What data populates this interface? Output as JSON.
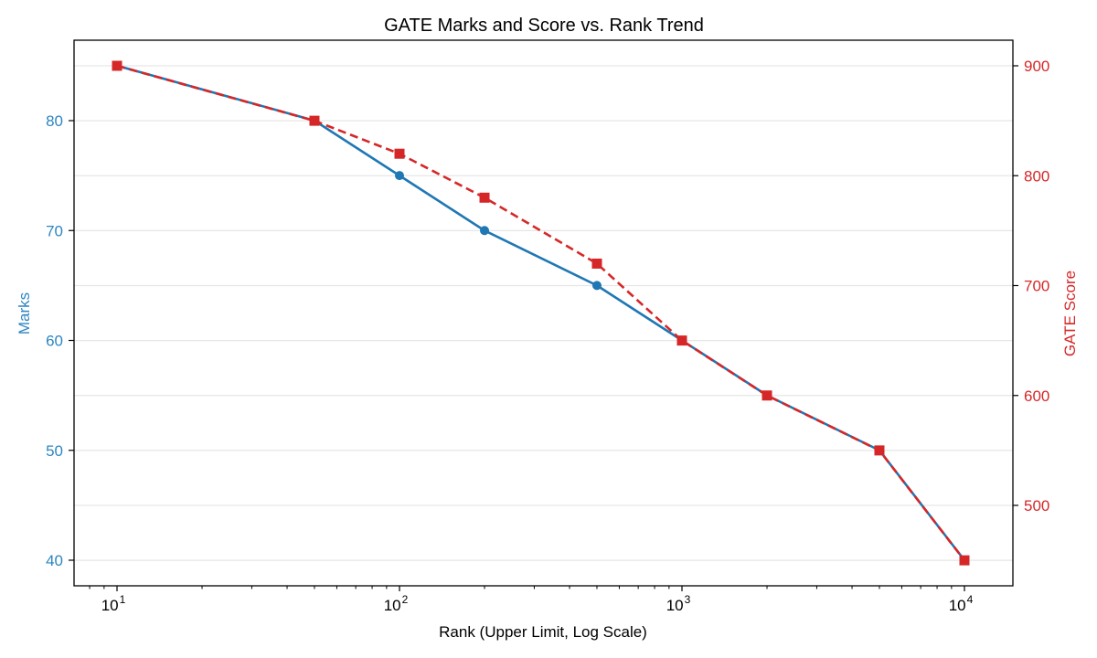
{
  "chart_data": {
    "type": "line",
    "title": "GATE Marks and Score vs. Rank Trend",
    "xlabel": "Rank (Upper Limit, Log Scale)",
    "ylabel": "Marks",
    "ylabel_right": "GATE Score",
    "xscale": "log",
    "x": [
      10,
      50,
      100,
      200,
      500,
      1000,
      2000,
      5000,
      10000
    ],
    "xticks": [
      "10^1",
      "10^2",
      "10^3",
      "10^4"
    ],
    "xtick_labels": [
      {
        "base": "10",
        "exp": "1"
      },
      {
        "base": "10",
        "exp": "2"
      },
      {
        "base": "10",
        "exp": "3"
      },
      {
        "base": "10",
        "exp": "4"
      }
    ],
    "yticks_left": [
      "40",
      "50",
      "60",
      "70",
      "80"
    ],
    "yticks_right": [
      "500",
      "600",
      "700",
      "800",
      "900"
    ],
    "ylim": [
      38,
      87.5
    ],
    "ylim_right": [
      432,
      924
    ],
    "grid": true,
    "legend": null,
    "series": [
      {
        "name": "Marks",
        "axis": "left",
        "color": "#1f77b4",
        "style": "solid",
        "marker": "circle",
        "values": [
          85,
          80,
          75,
          70,
          65,
          60,
          55,
          50,
          40
        ]
      },
      {
        "name": "GATE Score",
        "axis": "right",
        "color": "#d62728",
        "style": "dashed",
        "marker": "square",
        "values": [
          900,
          850,
          820,
          780,
          720,
          650,
          600,
          550,
          450
        ]
      }
    ]
  },
  "colors": {
    "marks": "#1f77b4",
    "marks_label": "#2e86c1",
    "score": "#d62728",
    "grid": "#e6e6e6",
    "axis": "#000000"
  }
}
